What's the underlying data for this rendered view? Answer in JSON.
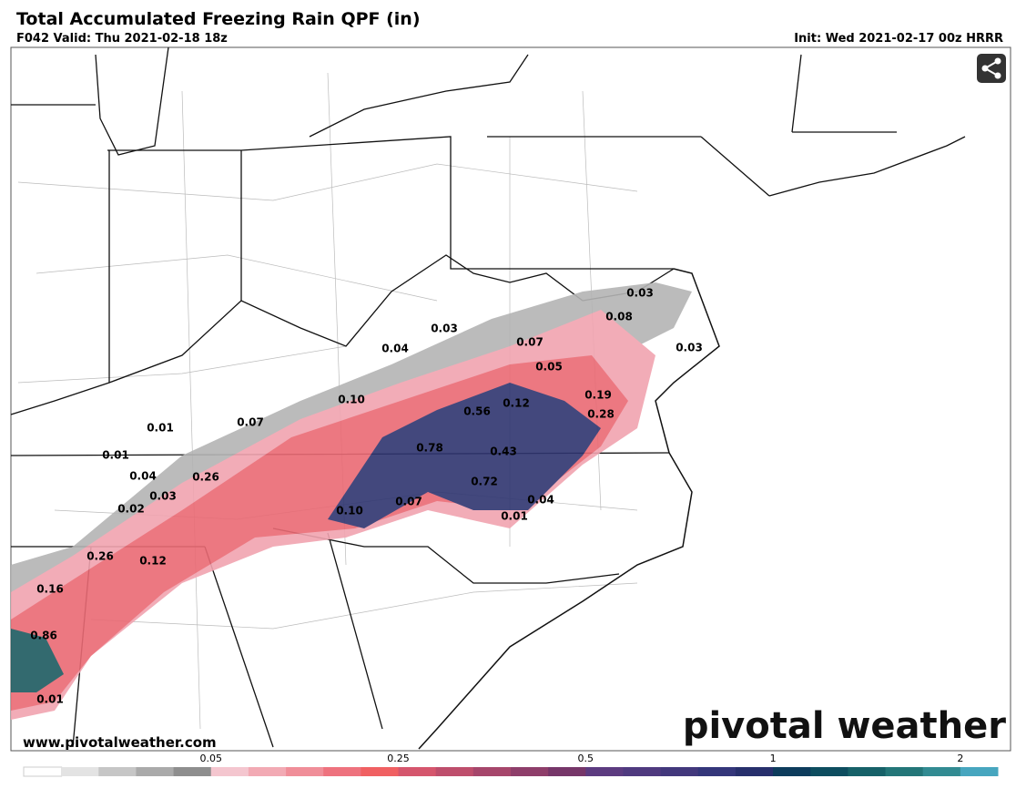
{
  "header": {
    "title": "Total Accumulated Freezing Rain QPF (in)",
    "valid": "F042 Valid: Thu 2021-02-18 18z",
    "init": "Init: Wed 2021-02-17 00z HRRR"
  },
  "map": {
    "labels": [
      "0.03",
      "0.08",
      "0.03",
      "0.04",
      "0.07",
      "0.03",
      "0.05",
      "0.10",
      "0.12",
      "0.19",
      "0.56",
      "0.28",
      "0.01",
      "0.07",
      "0.78",
      "0.43",
      "0.01",
      "0.04",
      "0.26",
      "0.72",
      "0.03",
      "0.07",
      "0.04",
      "0.02",
      "0.10",
      "0.01",
      "0.26",
      "0.12",
      "0.16",
      "0.86",
      "0.01"
    ],
    "website": "www.pivotalweather.com",
    "logo": "pivotal weather"
  },
  "colorbar": {
    "ticks": [
      "0.05",
      "0.25",
      "0.5",
      "1",
      "2"
    ],
    "colors": [
      "#ffffff",
      "#e3e3e3",
      "#c6c6c6",
      "#aaaaaa",
      "#8e8e8e",
      "#f4c6cf",
      "#f2aab4",
      "#f08e99",
      "#ee727e",
      "#f06062",
      "#d5566d",
      "#be4e6c",
      "#a6466b",
      "#8e3e6a",
      "#763669",
      "#5c3b80",
      "#4f3a7f",
      "#42387c",
      "#34367a",
      "#272f6c",
      "#0d3c5c",
      "#0d4d5f",
      "#166168",
      "#237678",
      "#328b92",
      "#47a6bf"
    ]
  }
}
